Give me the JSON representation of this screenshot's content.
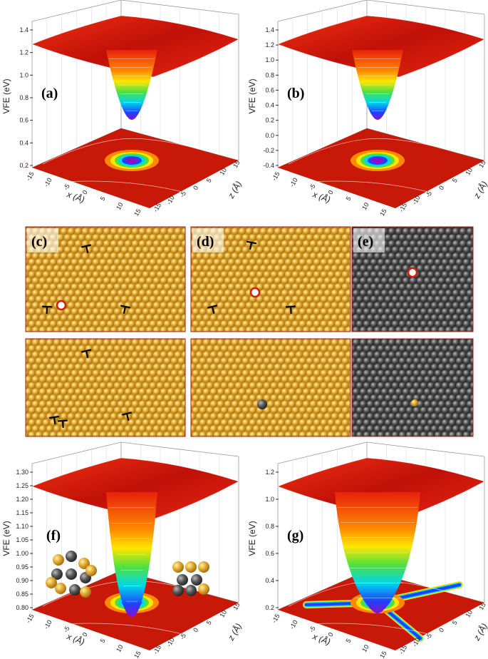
{
  "panels": [
    {
      "label": "(a)",
      "y_axis_title": "VFE (eV)",
      "y_ticks": [
        "0.2",
        "0.4",
        "0.6",
        "0.8",
        "1.0",
        "1.2",
        "1.4"
      ],
      "x_axis_title": "x (Å)",
      "x_ticks": [
        "-15",
        "-10",
        "-5",
        "0",
        "5",
        "10",
        "15"
      ],
      "z_axis_title": "z (Å)",
      "z_ticks": [
        "15",
        "10",
        "5",
        "0",
        "-5",
        "-10",
        "-15"
      ]
    },
    {
      "label": "(b)",
      "y_axis_title": "VFE (eV)",
      "y_ticks": [
        "-0.4",
        "-0.2",
        "0.0",
        "0.2",
        "0.4",
        "0.6",
        "0.8",
        "1.0",
        "1.2",
        "1.4"
      ],
      "x_axis_title": "x (Å)",
      "x_ticks": [
        "-15",
        "-10",
        "-5",
        "0",
        "5",
        "10",
        "15"
      ],
      "z_axis_title": "z (Å)",
      "z_ticks": [
        "15",
        "10",
        "5",
        "0",
        "-5",
        "-10",
        "-15"
      ]
    },
    {
      "label": "(f)",
      "y_axis_title": "VFE (eV)",
      "y_ticks": [
        "0.80",
        "0.85",
        "0.90",
        "0.95",
        "1.00",
        "1.05",
        "1.10",
        "1.15",
        "1.20",
        "1.25",
        "1.30"
      ],
      "x_axis_title": "x (Å)",
      "x_ticks": [
        "-15",
        "-10",
        "-5",
        "0",
        "5",
        "10",
        "15"
      ],
      "z_axis_title": "z (Å)",
      "z_ticks": [
        "15",
        "10",
        "5",
        "0",
        "-5",
        "-10",
        "-15"
      ]
    },
    {
      "label": "(g)",
      "y_axis_title": "VFE (eV)",
      "y_ticks": [
        "0.2",
        "0.4",
        "0.6",
        "0.8",
        "1.0",
        "1.2"
      ],
      "x_axis_title": "x (Å)",
      "x_ticks": [
        "-15",
        "-10",
        "-5",
        "0",
        "5",
        "10",
        "15"
      ],
      "z_axis_title": "z (Å)",
      "z_ticks": [
        "15",
        "10",
        "5",
        "0",
        "-5",
        "-10",
        "-15"
      ]
    }
  ],
  "atomistic": [
    {
      "label": "(c)"
    },
    {
      "label": "(d)"
    },
    {
      "label": "(e)"
    }
  ]
}
